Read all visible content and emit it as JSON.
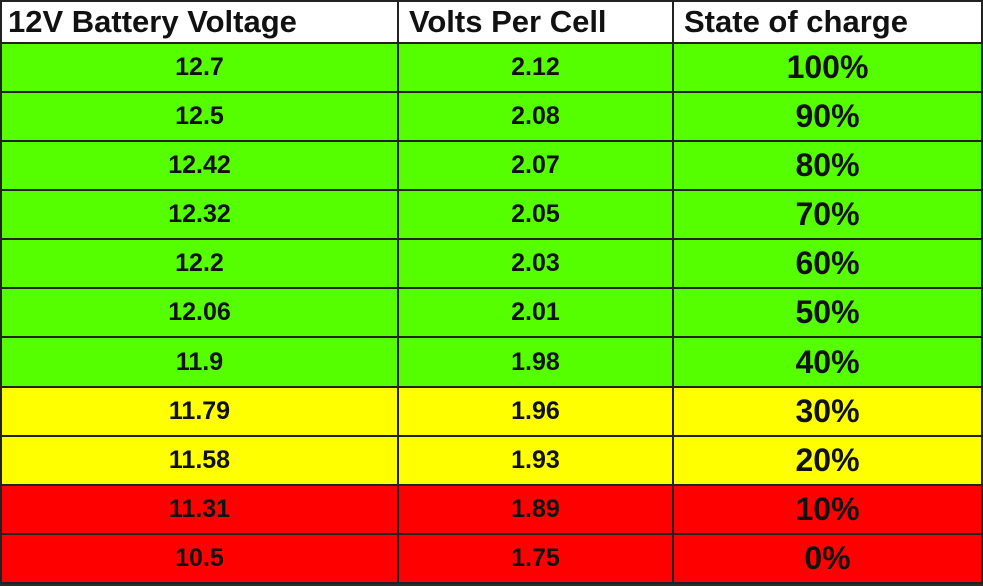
{
  "table": {
    "header": [
      "12V Battery Voltage",
      "Volts Per Cell",
      "State of charge"
    ],
    "rows": [
      [
        "12.7",
        "2.12",
        "100%"
      ],
      [
        "12.5",
        "2.08",
        "90%"
      ],
      [
        "12.42",
        "2.07",
        "80%"
      ],
      [
        "12.32",
        "2.05",
        "70%"
      ],
      [
        "12.2",
        "2.03",
        "60%"
      ],
      [
        "12.06",
        "2.01",
        "50%"
      ],
      [
        "11.9",
        "1.98",
        "40%"
      ],
      [
        "11.79",
        "1.96",
        "30%"
      ],
      [
        "11.58",
        "1.93",
        "20%"
      ],
      [
        "11.31",
        "1.89",
        "10%"
      ],
      [
        "10.5",
        "1.75",
        "0%"
      ]
    ]
  }
}
